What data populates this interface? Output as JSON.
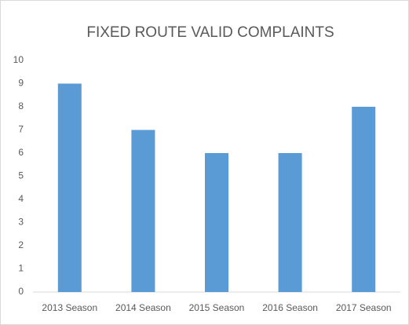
{
  "chart_data": {
    "type": "bar",
    "title": "FIXED ROUTE VALID COMPLAINTS",
    "categories": [
      "2013 Season",
      "2014 Season",
      "2015 Season",
      "2016 Season",
      "2017 Season"
    ],
    "values": [
      9,
      7,
      6,
      6,
      8
    ],
    "color": "#5b9bd5",
    "ylim": [
      0,
      10
    ],
    "yticks": [
      0,
      1,
      2,
      3,
      4,
      5,
      6,
      7,
      8,
      9,
      10
    ],
    "grid": false
  }
}
